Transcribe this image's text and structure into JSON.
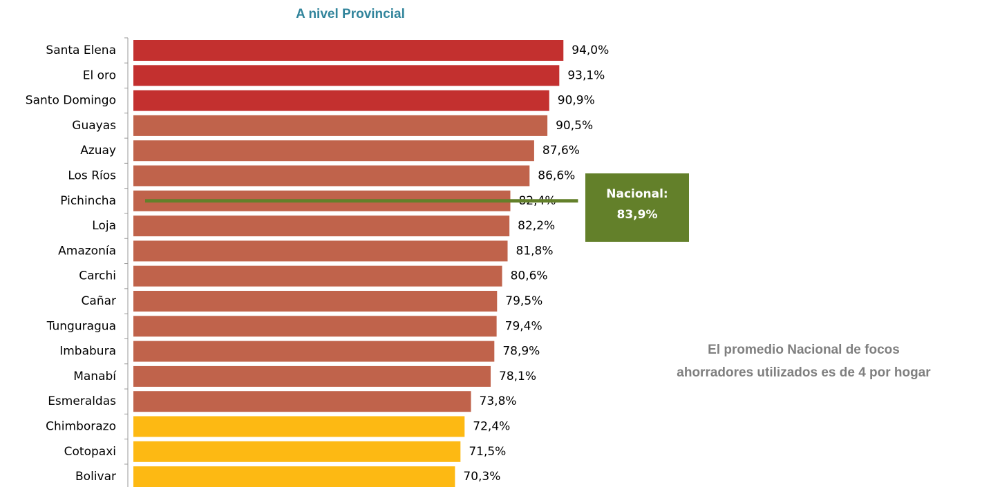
{
  "chart_data": {
    "type": "barh",
    "title": "A nivel Provincial",
    "categories": [
      "Santa Elena",
      "El oro",
      "Santo Domingo",
      "Guayas",
      "Azuay",
      "Los Ríos",
      "Pichincha",
      "Loja",
      "Amazonía",
      "Carchi",
      "Cañar",
      "Tunguragua",
      "Imbabura",
      "Manabí",
      "Esmeraldas",
      "Chimborazo",
      "Cotopaxi",
      "Bolivar"
    ],
    "values": [
      94.0,
      93.1,
      90.9,
      90.5,
      87.6,
      86.6,
      82.4,
      82.2,
      81.8,
      80.6,
      79.5,
      79.4,
      78.9,
      78.1,
      73.8,
      72.4,
      71.5,
      70.3
    ],
    "value_labels": [
      "94,0%",
      "93,1%",
      "90,9%",
      "90,5%",
      "87,6%",
      "86,6%",
      "82,4%",
      "82,2%",
      "81,8%",
      "80,6%",
      "79,5%",
      "79,4%",
      "78,9%",
      "78,1%",
      "73,8%",
      "72,4%",
      "71,5%",
      "70,3%"
    ],
    "colors": [
      "#c3302f",
      "#c3302f",
      "#c3302f",
      "#c0634b",
      "#c0634b",
      "#c0634b",
      "#c0634b",
      "#c0634b",
      "#c0634b",
      "#c0634b",
      "#c0634b",
      "#c0634b",
      "#c0634b",
      "#c0634b",
      "#c0634b",
      "#fdb913",
      "#fdb913",
      "#fdb913"
    ],
    "national": {
      "label": "Nacional:",
      "value": 83.9,
      "value_label": "83,9%",
      "color": "#63802a"
    },
    "annotation": [
      "El promedio Nacional de focos",
      "ahorradores utilizados es de 4 por hogar"
    ]
  }
}
